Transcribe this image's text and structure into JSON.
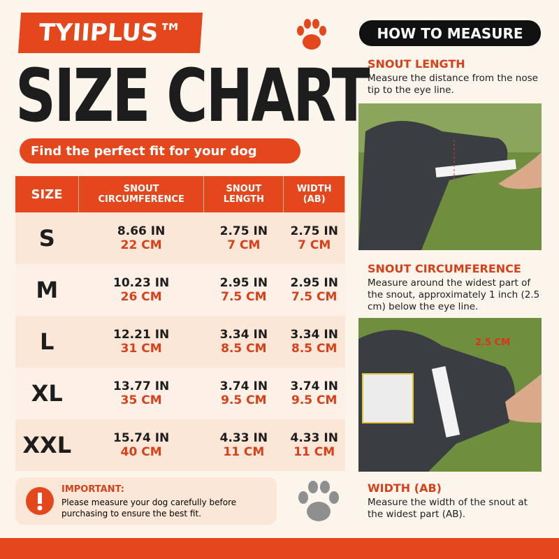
{
  "brand": "TYIIPLUS™",
  "title": "SIZE CHART",
  "subtitle": "Find the perfect fit for your dog",
  "table": {
    "headers": [
      "SIZE",
      "SNOUT CIRCUMFERENCE",
      "SNOUT LENGTH",
      "WIDTH (AB)"
    ],
    "rows": [
      {
        "size": "S",
        "cells": [
          [
            "8.66 IN",
            "22 CM"
          ],
          [
            "2.75 IN",
            "7 CM"
          ],
          [
            "2.75 IN",
            "7 CM"
          ]
        ]
      },
      {
        "size": "M",
        "cells": [
          [
            "10.23 IN",
            "26 CM"
          ],
          [
            "2.95 IN",
            "7.5 CM"
          ],
          [
            "2.95 IN",
            "7.5 CM"
          ]
        ]
      },
      {
        "size": "L",
        "cells": [
          [
            "12.21 IN",
            "31 CM"
          ],
          [
            "3.34 IN",
            "8.5 CM"
          ],
          [
            "3.34 IN",
            "8.5 CM"
          ]
        ]
      },
      {
        "size": "XL",
        "cells": [
          [
            "13.77 IN",
            "35 CM"
          ],
          [
            "3.74 IN",
            "9.5 CM"
          ],
          [
            "3.74 IN",
            "9.5 CM"
          ]
        ]
      },
      {
        "size": "XXL",
        "cells": [
          [
            "15.74 IN",
            "40 CM"
          ],
          [
            "4.33 IN",
            "11 CM"
          ],
          [
            "4.33 IN",
            "11 CM"
          ]
        ]
      }
    ]
  },
  "important": {
    "title": "IMPORTANT:",
    "text": "Please measure your dog carefully before purchasing to ensure the best fit."
  },
  "measure": {
    "title": "HOW TO MEASURE",
    "sections": [
      {
        "heading": "SNOUT LENGTH",
        "text": "Measure the distance from the nose tip to the eye line."
      },
      {
        "heading": "SNOUT CIRCUMFERENCE",
        "text": "Measure around the widest part of the snout, approximately 1 inch (2.5 cm) below the eye line."
      },
      {
        "heading": "WIDTH (AB)",
        "text": "Measure the width of the snout at the widest part (AB)."
      }
    ],
    "photo_label": "2.5 CM"
  }
}
